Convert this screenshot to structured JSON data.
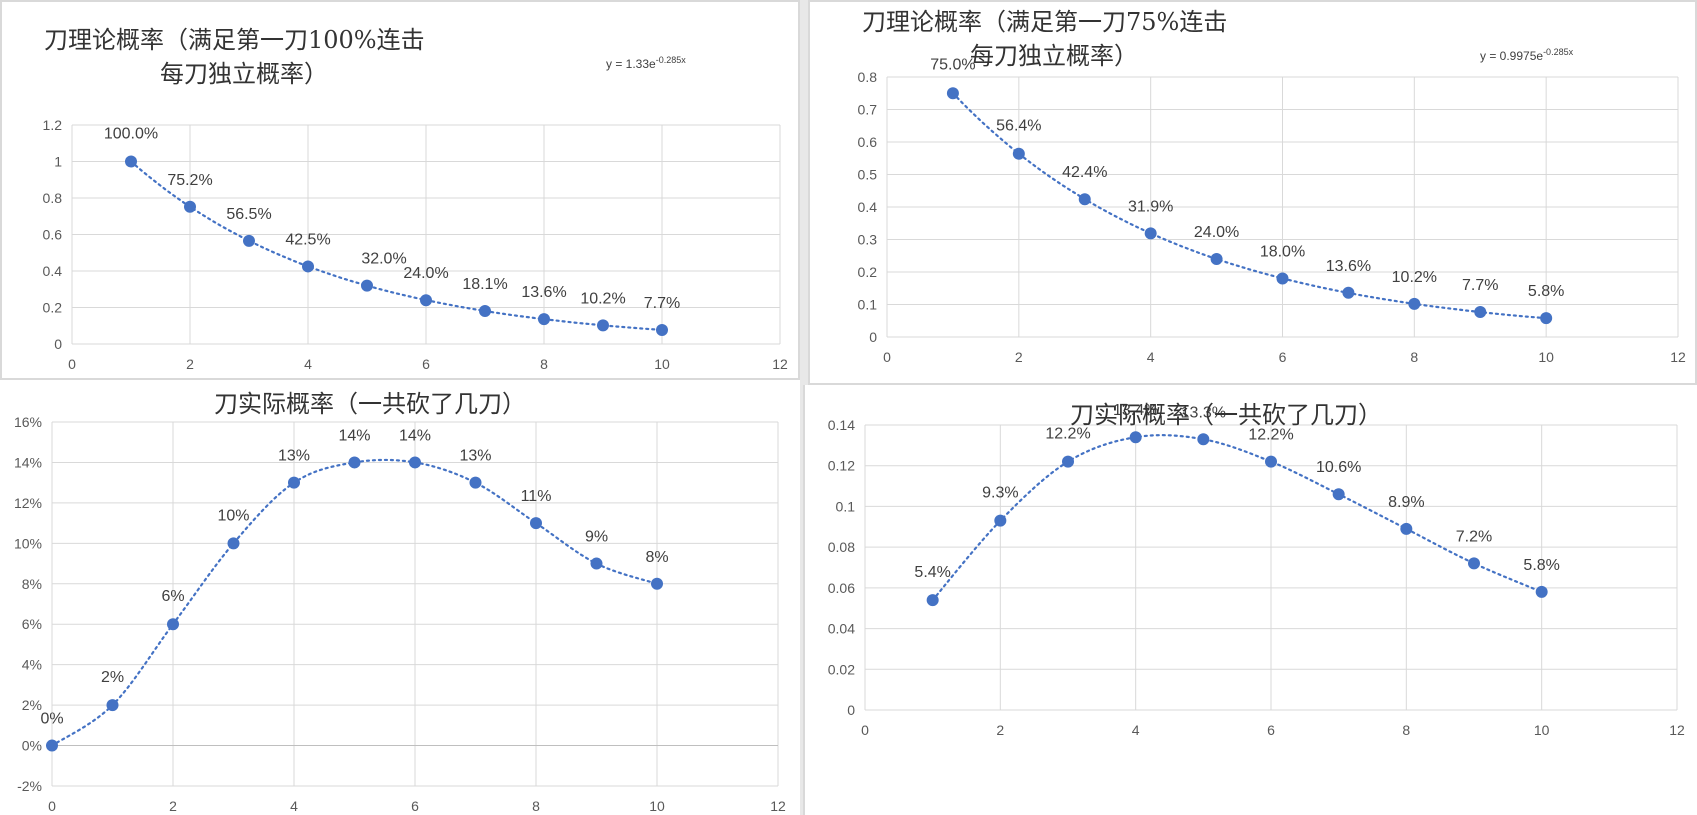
{
  "colors": {
    "series": "#4472c4",
    "grid": "#d9d9d9",
    "text": "#404040"
  },
  "chart_data": [
    {
      "type": "scatter",
      "title_lines": [
        "刀理论概率（满足第一刀100%连击",
        "每刀独立概率）"
      ],
      "trendline_label": "y = 1.33e",
      "trendline_exp": "-0.285x",
      "trendline": {
        "type": "exponential",
        "a": 1.33,
        "b": -0.285
      },
      "x": [
        1,
        2,
        3,
        4,
        5,
        6,
        7,
        8,
        9,
        10
      ],
      "y": [
        1.0,
        0.752,
        0.565,
        0.425,
        0.32,
        0.24,
        0.181,
        0.136,
        0.102,
        0.077
      ],
      "data_labels": [
        "100.0%",
        "75.2%",
        "56.5%",
        "42.5%",
        "32.0%",
        "24.0%",
        "18.1%",
        "13.6%",
        "10.2%",
        "7.7%"
      ],
      "xlim": [
        0,
        12
      ],
      "ylim": [
        0,
        1.2
      ],
      "xticks": [
        0,
        2,
        4,
        6,
        8,
        10,
        12
      ],
      "xtick_labels": [
        "0",
        "2",
        "4",
        "6",
        "8",
        "10",
        "12"
      ],
      "yticks": [
        0,
        0.2,
        0.4,
        0.6,
        0.8,
        1,
        1.2
      ],
      "ytick_labels": [
        "0",
        "0.2",
        "0.4",
        "0.6",
        "0.8",
        "1",
        "1.2"
      ],
      "grid": true,
      "legend": "none"
    },
    {
      "type": "scatter",
      "title_lines": [
        "刀理论概率（满足第一刀75%连击",
        "每刀独立概率）"
      ],
      "trendline_label": "y = 0.9975e",
      "trendline_exp": "-0.285x",
      "trendline": {
        "type": "exponential",
        "a": 0.9975,
        "b": -0.285
      },
      "x": [
        1,
        2,
        3,
        4,
        5,
        6,
        7,
        8,
        9,
        10
      ],
      "y": [
        0.75,
        0.564,
        0.424,
        0.319,
        0.24,
        0.18,
        0.136,
        0.102,
        0.077,
        0.058
      ],
      "data_labels": [
        "75.0%",
        "56.4%",
        "42.4%",
        "31.9%",
        "24.0%",
        "18.0%",
        "13.6%",
        "10.2%",
        "7.7%",
        "5.8%"
      ],
      "xlim": [
        0,
        12
      ],
      "ylim": [
        0,
        0.8
      ],
      "xticks": [
        0,
        2,
        4,
        6,
        8,
        10,
        12
      ],
      "xtick_labels": [
        "0",
        "2",
        "4",
        "6",
        "8",
        "10",
        "12"
      ],
      "yticks": [
        0,
        0.1,
        0.2,
        0.3,
        0.4,
        0.5,
        0.6,
        0.7,
        0.8
      ],
      "ytick_labels": [
        "0",
        "0.1",
        "0.2",
        "0.3",
        "0.4",
        "0.5",
        "0.6",
        "0.7",
        "0.8"
      ],
      "grid": true,
      "legend": "none"
    },
    {
      "type": "scatter",
      "title_lines": [
        "刀实际概率（一共砍了几刀）"
      ],
      "x": [
        0,
        1,
        2,
        3,
        4,
        5,
        6,
        7,
        8,
        9,
        10
      ],
      "y": [
        0,
        0.02,
        0.06,
        0.1,
        0.13,
        0.14,
        0.14,
        0.13,
        0.11,
        0.09,
        0.08
      ],
      "data_labels": [
        "0%",
        "2%",
        "6%",
        "10%",
        "13%",
        "14%",
        "14%",
        "13%",
        "11%",
        "9%",
        "8%"
      ],
      "xlim": [
        0,
        12
      ],
      "ylim": [
        -0.02,
        0.16
      ],
      "xticks": [
        0,
        2,
        4,
        6,
        8,
        10,
        12
      ],
      "xtick_labels": [
        "0",
        "2",
        "4",
        "6",
        "8",
        "10",
        "12"
      ],
      "yticks": [
        -0.02,
        0,
        0.02,
        0.04,
        0.06,
        0.08,
        0.1,
        0.12,
        0.14,
        0.16
      ],
      "ytick_labels": [
        "-2%",
        "0%",
        "2%",
        "4%",
        "6%",
        "8%",
        "10%",
        "12%",
        "14%",
        "16%"
      ],
      "grid": true,
      "legend": "none"
    },
    {
      "type": "scatter",
      "title_lines": [
        "刀实际概率（一共砍了几刀）"
      ],
      "x": [
        1,
        2,
        3,
        4,
        5,
        6,
        7,
        8,
        9,
        10
      ],
      "y": [
        0.054,
        0.093,
        0.122,
        0.134,
        0.133,
        0.122,
        0.106,
        0.089,
        0.072,
        0.058
      ],
      "data_labels": [
        "5.4%",
        "9.3%",
        "12.2%",
        "13.4%",
        "13.3%",
        "12.2%",
        "10.6%",
        "8.9%",
        "7.2%",
        "5.8%"
      ],
      "xlim": [
        0,
        12
      ],
      "ylim": [
        0,
        0.14
      ],
      "xticks": [
        0,
        2,
        4,
        6,
        8,
        10,
        12
      ],
      "xtick_labels": [
        "0",
        "2",
        "4",
        "6",
        "8",
        "10",
        "12"
      ],
      "yticks": [
        0,
        0.02,
        0.04,
        0.06,
        0.08,
        0.1,
        0.12,
        0.14
      ],
      "ytick_labels": [
        "0",
        "0.02",
        "0.04",
        "0.06",
        "0.08",
        "0.1",
        "0.12",
        "0.14"
      ],
      "grid": true,
      "legend": "none"
    }
  ]
}
